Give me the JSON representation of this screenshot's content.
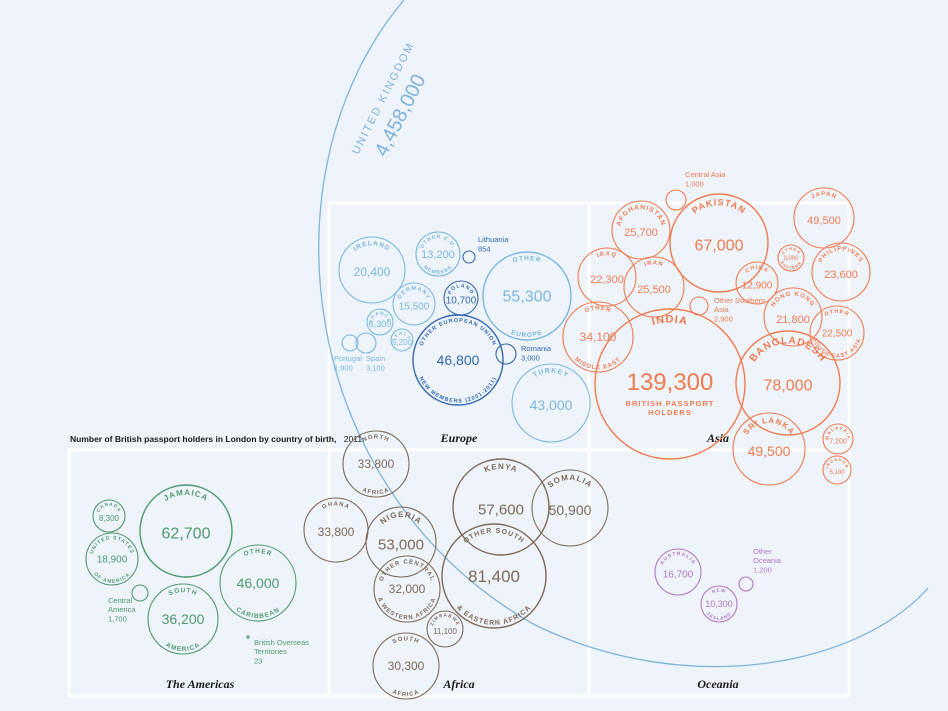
{
  "title": {
    "main": "Number of British passport holders in London by country of birth,",
    "year": "2011"
  },
  "colors": {
    "uk": "#7fb3dc",
    "europe": "#7ab8de",
    "europe_dark": "#3468ad",
    "asia": "#ef7b50",
    "africa": "#7e6a58",
    "americas": "#4f9a6e",
    "oceania": "#b178c3",
    "frame": "#ffffff"
  },
  "regions": {
    "europe": "Europe",
    "asia": "Asia",
    "americas": "The Americas",
    "africa": "Africa",
    "oceania": "Oceania"
  },
  "uk": {
    "name": "UNITED KINGDOM",
    "value": "4,458,000"
  },
  "chart_data": {
    "type": "bubble",
    "groups": [
      {
        "region": "Europe",
        "items": [
          {
            "name": "IRELAND",
            "value": 20400
          },
          {
            "name": "OTHER E.U. MEMBERS",
            "value": 13200
          },
          {
            "name": "GERMANY",
            "value": 15500
          },
          {
            "name": "POLAND",
            "value": 10700
          },
          {
            "name": "FRANCE",
            "value": 6300
          },
          {
            "name": "ITALY",
            "value": 5200
          },
          {
            "name": "Portugal",
            "value": 1900
          },
          {
            "name": "Spain",
            "value": 3100
          },
          {
            "name": "OTHER EUROPEAN UNION NEW MEMBERS (2001-2011)",
            "value": 46800
          },
          {
            "name": "Lithuania",
            "value": 854
          },
          {
            "name": "OTHER EUROPE",
            "value": 55300
          },
          {
            "name": "Romania",
            "value": 3000
          },
          {
            "name": "TURKEY",
            "value": 43000
          }
        ]
      },
      {
        "region": "Asia",
        "items": [
          {
            "name": "Central Asia",
            "value": 1000
          },
          {
            "name": "AFGHANISTAN",
            "value": 25700
          },
          {
            "name": "PAKISTAN",
            "value": 67000
          },
          {
            "name": "JAPAN",
            "value": 49500
          },
          {
            "name": "IRAQ",
            "value": 22300
          },
          {
            "name": "IRAN",
            "value": 25500
          },
          {
            "name": "CHINA",
            "value": 12900
          },
          {
            "name": "OTHER EASTERN ASIA",
            "value": 3000
          },
          {
            "name": "PHILIPPINES",
            "value": 23600
          },
          {
            "name": "Other Southern Asia",
            "value": 2900
          },
          {
            "name": "HONG KONG",
            "value": 21800
          },
          {
            "name": "OTHER SOUTH-EAST ASIA",
            "value": 22500
          },
          {
            "name": "OTHER MIDDLE EAST",
            "value": 34100
          },
          {
            "name": "INDIA",
            "value": 139300
          },
          {
            "name": "BANGLADESH",
            "value": 78000
          },
          {
            "name": "SRI LANKA",
            "value": 49500
          },
          {
            "name": "MALAYSIA",
            "value": 7200
          },
          {
            "name": "SINGAPORE",
            "value": 5100
          }
        ]
      },
      {
        "region": "Africa",
        "items": [
          {
            "name": "NORTH AFRICA",
            "value": 33800
          },
          {
            "name": "KENYA",
            "value": 57600
          },
          {
            "name": "SOMALIA",
            "value": 50900
          },
          {
            "name": "GHANA",
            "value": 33800
          },
          {
            "name": "NIGERIA",
            "value": 53000
          },
          {
            "name": "OTHER SOUTH & EASTERN AFRICA",
            "value": 81400
          },
          {
            "name": "OTHER CENTRAL & WESTERN AFRICA",
            "value": 32000
          },
          {
            "name": "ZIMBABWE",
            "value": 11100
          },
          {
            "name": "SOUTH AFRICA",
            "value": 30300
          }
        ]
      },
      {
        "region": "The Americas",
        "items": [
          {
            "name": "CANADA",
            "value": 8300
          },
          {
            "name": "JAMAICA",
            "value": 62700
          },
          {
            "name": "UNITED STATES OF AMERICA",
            "value": 18900
          },
          {
            "name": "OTHER CARIBBEAN",
            "value": 46000
          },
          {
            "name": "Central America",
            "value": 1700
          },
          {
            "name": "SOUTH AMERICA",
            "value": 36200
          },
          {
            "name": "British Overseas Territories",
            "value": 23
          }
        ]
      },
      {
        "region": "Oceania",
        "items": [
          {
            "name": "AUSTRALIA",
            "value": 16700
          },
          {
            "name": "Other Oceania",
            "value": 1200
          },
          {
            "name": "NEW ZEALAND",
            "value": 10300
          }
        ]
      }
    ]
  },
  "bubbles": [
    {
      "region": "europe",
      "c": "#7ab8de",
      "top": "IRELAND",
      "num": "20,400"
    },
    {
      "region": "europe",
      "c": "#7ab8de",
      "top": "OTHER E.U.",
      "bottom": "MEMBERS",
      "num": "13,200"
    },
    {
      "region": "europe",
      "c": "#7ab8de",
      "top": "GERMANY",
      "num": "15,500"
    },
    {
      "region": "europe",
      "c": "#3468ad",
      "top": "POLAND",
      "num": "10,700"
    },
    {
      "region": "europe",
      "c": "#7ab8de",
      "top": "FRANCE",
      "num": "6,300"
    },
    {
      "region": "europe",
      "c": "#7ab8de",
      "top": "ITALY",
      "num": "5,200"
    },
    {
      "region": "europe",
      "c": "#7ab8de",
      "ext": "Portugal",
      "extnum": "1,900"
    },
    {
      "region": "europe",
      "c": "#7ab8de",
      "ext": "Spain",
      "extnum": "3,100"
    },
    {
      "region": "europe",
      "c": "#3468ad",
      "top": "OTHER EUROPEAN UNION",
      "bottom": "NEW MEMBERS (2001-2011)",
      "num": "46,800"
    },
    {
      "region": "europe",
      "c": "#3468ad",
      "ext": "Lithuania",
      "extnum": "854"
    },
    {
      "region": "europe",
      "c": "#7ab8de",
      "top": "OTHER",
      "bottom": "EUROPE",
      "num": "55,300"
    },
    {
      "region": "europe",
      "c": "#3468ad",
      "ext": "Romania",
      "extnum": "3,000"
    },
    {
      "region": "europe",
      "c": "#7ab8de",
      "top": "TURKEY",
      "num": "43,000"
    },
    {
      "region": "asia",
      "c": "#ef7b50",
      "ext": "Central Asia",
      "extnum": "1,000"
    },
    {
      "region": "asia",
      "c": "#ef7b50",
      "top": "AFGHANISTAN",
      "num": "25,700"
    },
    {
      "region": "asia",
      "c": "#ef7b50",
      "top": "PAKISTAN",
      "num": "67,000"
    },
    {
      "region": "asia",
      "c": "#ef7b50",
      "top": "JAPAN",
      "num": "49,500"
    },
    {
      "region": "asia",
      "c": "#ef7b50",
      "top": "IRAQ",
      "num": "22,300"
    },
    {
      "region": "asia",
      "c": "#ef7b50",
      "top": "IRAN",
      "num": "25,500"
    },
    {
      "region": "asia",
      "c": "#ef7b50",
      "top": "CHINA",
      "num": "12,900"
    },
    {
      "region": "asia",
      "c": "#ef7b50",
      "top": "OTHER",
      "bottom": "EASTERN",
      "num": "3,000"
    },
    {
      "region": "asia",
      "c": "#ef7b50",
      "top": "PHILIPPINES",
      "num": "23,600"
    },
    {
      "region": "asia",
      "c": "#ef7b50",
      "ext": "Other Southern Asia",
      "extnum": "2,900"
    },
    {
      "region": "asia",
      "c": "#ef7b50",
      "top": "HONG KONG",
      "num": "21,800"
    },
    {
      "region": "asia",
      "c": "#ef7b50",
      "top": "OTHER",
      "bottom": "SOUTH-EAST ASIA",
      "num": "22,500"
    },
    {
      "region": "asia",
      "c": "#ef7b50",
      "top": "OTHER",
      "bottom": "MIDDLE EAST",
      "num": "34,100"
    },
    {
      "region": "asia",
      "c": "#ef7b50",
      "top": "INDIA",
      "num": "139,300",
      "sub1": "BRITISH PASSPORT",
      "sub2": "HOLDERS"
    },
    {
      "region": "asia",
      "c": "#ef7b50",
      "top": "BANGLADESH",
      "num": "78,000"
    },
    {
      "region": "asia",
      "c": "#ef7b50",
      "top": "SRI LANKA",
      "num": "49,500"
    },
    {
      "region": "asia",
      "c": "#ef7b50",
      "top": "MALAYSIA",
      "num": "7,200"
    },
    {
      "region": "asia",
      "c": "#ef7b50",
      "top": "SINGAPORE",
      "num": "5,100"
    },
    {
      "region": "africa",
      "c": "#7e6a58",
      "top": "NORTH",
      "bottom": "AFRICA",
      "num": "33,800"
    },
    {
      "region": "africa",
      "c": "#7e6a58",
      "top": "KENYA",
      "num": "57,600"
    },
    {
      "region": "africa",
      "c": "#7e6a58",
      "top": "SOMALIA",
      "num": "50,900"
    },
    {
      "region": "africa",
      "c": "#7e6a58",
      "top": "GHANA",
      "num": "33,800"
    },
    {
      "region": "africa",
      "c": "#7e6a58",
      "top": "NIGERIA",
      "num": "53,000"
    },
    {
      "region": "africa",
      "c": "#7e6a58",
      "top": "OTHER SOUTH",
      "bottom": "& EASTERN AFRICA",
      "num": "81,400"
    },
    {
      "region": "africa",
      "c": "#7e6a58",
      "top": "OTHER CENTRAL",
      "bottom": "& WESTERN AFRICA",
      "num": "32,000"
    },
    {
      "region": "africa",
      "c": "#7e6a58",
      "top": "ZIMBABWE",
      "num": "11,100"
    },
    {
      "region": "africa",
      "c": "#7e6a58",
      "top": "SOUTH",
      "bottom": "AFRICA",
      "num": "30,300"
    },
    {
      "region": "americas",
      "c": "#4f9a6e",
      "top": "CANADA",
      "num": "8,300"
    },
    {
      "region": "americas",
      "c": "#4f9a6e",
      "top": "JAMAICA",
      "num": "62,700"
    },
    {
      "region": "americas",
      "c": "#4f9a6e",
      "top": "UNITED STATES",
      "bottom": "OF AMERICA",
      "num": "18,900"
    },
    {
      "region": "americas",
      "c": "#4f9a6e",
      "top": "OTHER",
      "bottom": "CARIBBEAN",
      "num": "46,000"
    },
    {
      "region": "americas",
      "c": "#4f9a6e",
      "ext": "Central America",
      "extnum": "1,700"
    },
    {
      "region": "americas",
      "c": "#4f9a6e",
      "top": "SOUTH",
      "bottom": "AMERICA",
      "num": "36,200"
    },
    {
      "region": "americas",
      "c": "#4f9a6e",
      "ext": "British Overseas Territories",
      "extnum": "23"
    },
    {
      "region": "oceania",
      "c": "#b178c3",
      "top": "AUSTRALIA",
      "num": "16,700"
    },
    {
      "region": "oceania",
      "c": "#b178c3",
      "ext": "Other Oceania",
      "extnum": "1,200"
    },
    {
      "region": "oceania",
      "c": "#b178c3",
      "top": "NEW",
      "bottom": "ZEALAND",
      "num": "10,300"
    }
  ]
}
